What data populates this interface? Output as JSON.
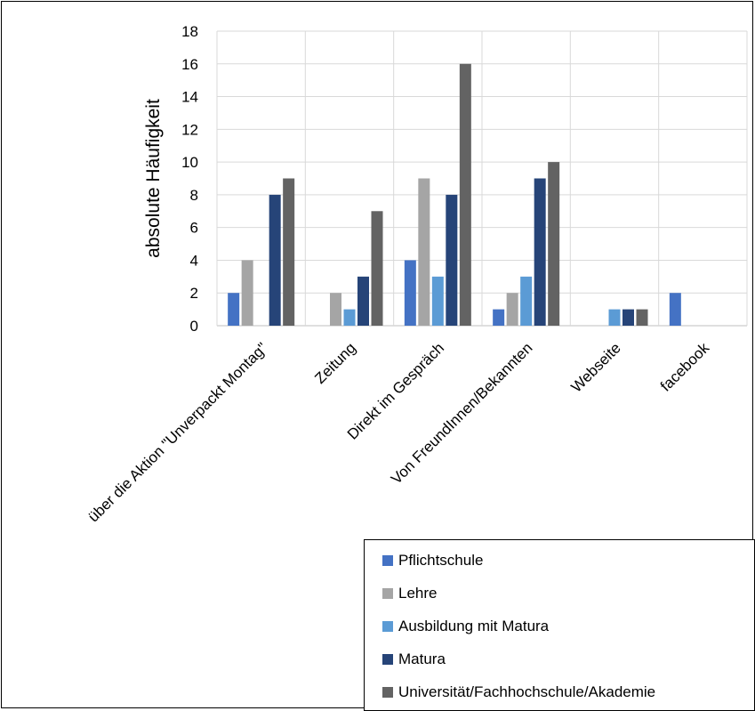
{
  "chart_data": {
    "type": "bar",
    "title": "",
    "xlabel": "",
    "ylabel": "absolute Häufigkeit",
    "ylim": [
      0,
      18
    ],
    "yticks": [
      0,
      2,
      4,
      6,
      8,
      10,
      12,
      14,
      16,
      18
    ],
    "grid": true,
    "legend_position": "bottom-right",
    "categories": [
      "über die Aktion \"Unverpackt Montag\"",
      "Zeitung",
      "Direkt im Gespräch",
      "Von FreundInnen/Bekannten",
      "Webseite",
      "facebook"
    ],
    "series": [
      {
        "name": "Pflichtschule",
        "color": "#4472C4",
        "values": [
          2,
          0,
          4,
          1,
          0,
          2
        ]
      },
      {
        "name": "Lehre",
        "color": "#A5A5A5",
        "values": [
          4,
          2,
          9,
          2,
          0,
          0
        ]
      },
      {
        "name": "Ausbildung mit Matura",
        "color": "#5B9BD5",
        "values": [
          0,
          1,
          3,
          3,
          1,
          0
        ]
      },
      {
        "name": "Matura",
        "color": "#264478",
        "values": [
          8,
          3,
          8,
          9,
          1,
          0
        ]
      },
      {
        "name": "Universität/Fachhochschule/Akademie",
        "color": "#636363",
        "values": [
          9,
          7,
          16,
          10,
          1,
          0
        ]
      }
    ]
  }
}
